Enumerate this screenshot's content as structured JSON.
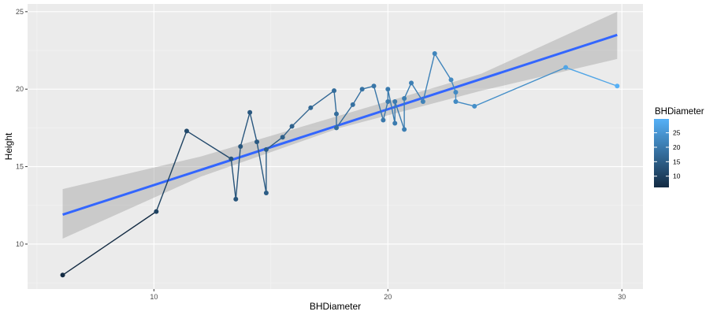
{
  "chart_data": {
    "type": "scatter",
    "title": "",
    "xlabel": "BHDiameter",
    "ylabel": "Height",
    "xlim": [
      4.6,
      30.9
    ],
    "ylim": [
      7.1,
      25.5
    ],
    "x_ticks": [
      10,
      20,
      30
    ],
    "y_ticks": [
      10,
      15,
      20,
      25
    ],
    "x_tick_labels": [
      "10",
      "20",
      "30"
    ],
    "y_tick_labels": [
      "10",
      "15",
      "20",
      "25"
    ],
    "grid": true,
    "legend_position": "right",
    "color_scale": {
      "title": "BHDiameter",
      "min": 6.1,
      "max": 29.8,
      "low_color": "#132B43",
      "high_color": "#56B1F7",
      "breaks": [
        10,
        15,
        20,
        25
      ],
      "break_labels": [
        "10",
        "15",
        "20",
        "25"
      ]
    },
    "series": [
      {
        "x": [
          6.1,
          10.1,
          11.4,
          13.3,
          13.5,
          13.7,
          14.1,
          14.4,
          14.8,
          14.8,
          15.5,
          15.9,
          16.7,
          17.7,
          17.8,
          17.8,
          18.5,
          18.9,
          19.4,
          19.8,
          20.0,
          20.0,
          20.3,
          20.3,
          20.7,
          20.7,
          21.0,
          21.5,
          22.0,
          22.7,
          22.9,
          22.9,
          23.7,
          27.6,
          29.8
        ],
        "y": [
          8.0,
          12.1,
          17.3,
          15.5,
          12.9,
          16.3,
          18.5,
          16.6,
          13.3,
          16.1,
          16.9,
          17.6,
          18.8,
          19.9,
          18.4,
          17.5,
          19.0,
          20.0,
          20.2,
          18.0,
          19.2,
          20.0,
          17.8,
          19.2,
          17.4,
          19.4,
          20.4,
          19.2,
          22.3,
          20.6,
          19.8,
          19.2,
          18.9,
          21.4,
          20.2
        ]
      }
    ],
    "trend_line": {
      "method": "lm",
      "x": [
        6.1,
        29.8
      ],
      "y": [
        11.9,
        23.5
      ],
      "color": "#3366FF",
      "band": {
        "x": [
          6.1,
          12,
          17.95,
          24,
          29.8
        ],
        "lower": [
          10.35,
          14.35,
          17.5,
          19.9,
          21.95
        ],
        "upper": [
          13.55,
          15.65,
          18.3,
          21.0,
          25.0
        ],
        "color": "#999999"
      }
    }
  }
}
